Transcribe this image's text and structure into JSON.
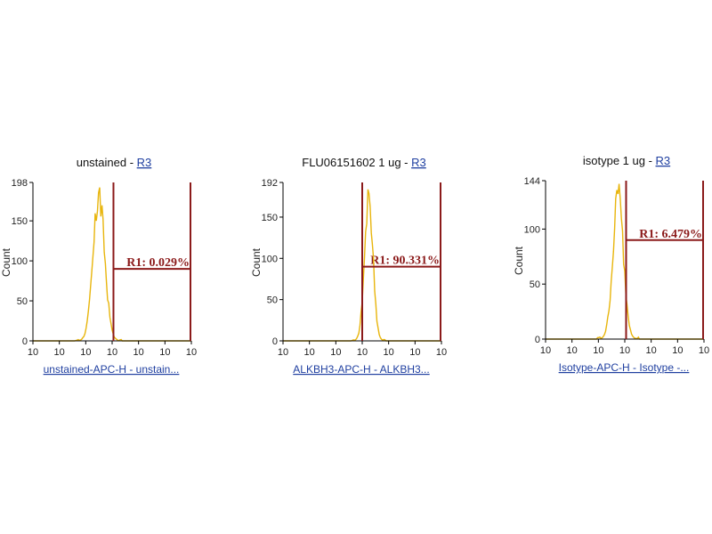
{
  "colors": {
    "histogram": "#e8b50c",
    "gate": "#8b1a1a",
    "axis": "#000000",
    "link": "#1f3fa0"
  },
  "chart_data": [
    {
      "type": "histogram",
      "title": "unstained - ",
      "title_link": "R3",
      "ylabel": "Count",
      "xlabel": "unstained-APC-H - unstain...",
      "xscale": "log",
      "xlim": [
        0,
        6
      ],
      "ylim": [
        0,
        198
      ],
      "yticks": [
        0,
        50,
        100,
        150,
        198
      ],
      "ytick_labels": [
        "0",
        "50",
        "100",
        "150",
        "198"
      ],
      "xtick_labels": [
        "10",
        "10",
        "10",
        "10",
        "10",
        "10",
        "10"
      ],
      "peak_decade": 2.5,
      "peak_width": 0.22,
      "gate": {
        "label": "R1: 0.029%",
        "start": 3.05,
        "end": 6.0,
        "y": 90
      }
    },
    {
      "type": "histogram",
      "title": "FLU06151602 1 ug - ",
      "title_link": "R3",
      "ylabel": "Count",
      "xlabel": "ALKBH3-APC-H - ALKBH3...",
      "xscale": "log",
      "xlim": [
        0,
        6
      ],
      "ylim": [
        0,
        192
      ],
      "yticks": [
        0,
        50,
        100,
        150,
        192
      ],
      "ytick_labels": [
        "0",
        "50",
        "100",
        "150",
        "192"
      ],
      "xtick_labels": [
        "10",
        "10",
        "10",
        "10",
        "10",
        "10",
        "10"
      ],
      "peak_decade": 3.25,
      "peak_width": 0.16,
      "gate": {
        "label": "R1: 90.331%",
        "start": 3.0,
        "end": 6.0,
        "y": 90
      }
    },
    {
      "type": "histogram",
      "title": "isotype 1 ug - ",
      "title_link": "R3",
      "ylabel": "Count",
      "xlabel": "Isotype-APC-H - Isotype -...",
      "xscale": "log",
      "xlim": [
        0,
        6
      ],
      "ylim": [
        0,
        144
      ],
      "yticks": [
        0,
        50,
        100,
        144
      ],
      "ytick_labels": [
        "0",
        "50",
        "100",
        "144"
      ],
      "xtick_labels": [
        "10",
        "10",
        "10",
        "10",
        "10",
        "10",
        "10"
      ],
      "peak_decade": 2.75,
      "peak_width": 0.2,
      "gate": {
        "label": "R1: 6.479%",
        "start": 3.05,
        "end": 6.0,
        "y": 90
      }
    }
  ]
}
